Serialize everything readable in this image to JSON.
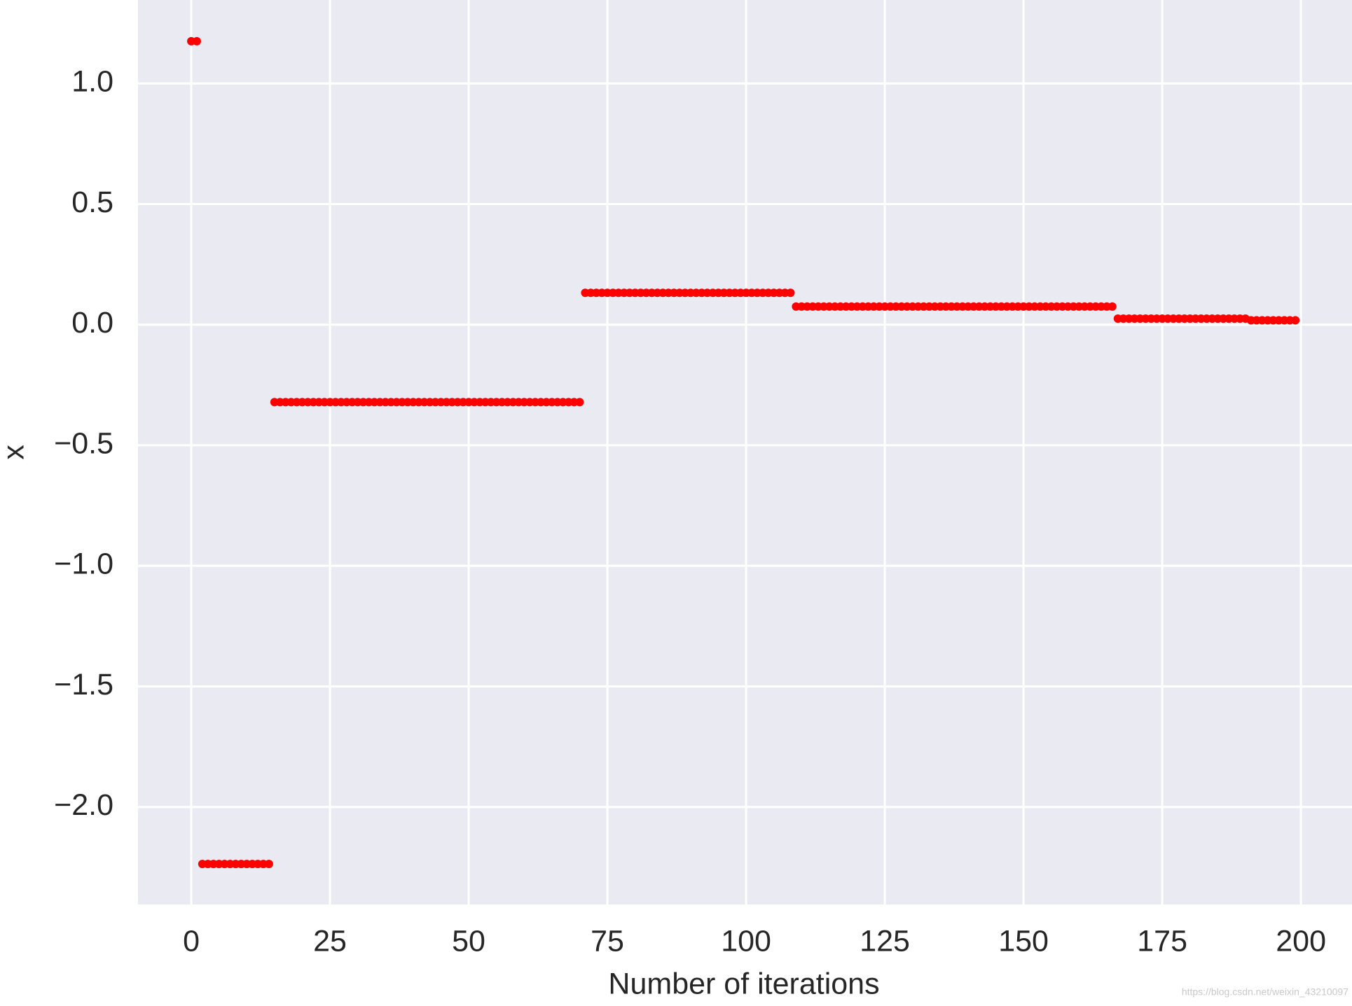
{
  "chart_data": {
    "type": "scatter",
    "x_label": "Number of iterations",
    "y_label": "x",
    "watermark": "https://blog.csdn.net/weixin_43210097",
    "color": "#ff0000",
    "grid": true,
    "xlim": [
      -9.6,
      209.2
    ],
    "ylim": [
      -2.404,
      1.346
    ],
    "xticks": [
      0,
      25,
      50,
      75,
      100,
      125,
      150,
      175,
      200
    ],
    "yticks": [
      {
        "value": -2.0,
        "label": "−2.0"
      },
      {
        "value": -1.5,
        "label": "−1.5"
      },
      {
        "value": -1.0,
        "label": "−1.0"
      },
      {
        "value": -0.5,
        "label": "−0.5"
      },
      {
        "value": 0.0,
        "label": "0.0"
      },
      0.5,
      {
        "value": 1.0,
        "label": "1.0"
      }
    ],
    "x": [
      0,
      1,
      2,
      3,
      4,
      5,
      6,
      7,
      8,
      9,
      10,
      11,
      12,
      13,
      14,
      15,
      16,
      17,
      18,
      19,
      20,
      21,
      22,
      23,
      24,
      25,
      26,
      27,
      28,
      29,
      30,
      31,
      32,
      33,
      34,
      35,
      36,
      37,
      38,
      39,
      40,
      41,
      42,
      43,
      44,
      45,
      46,
      47,
      48,
      49,
      50,
      51,
      52,
      53,
      54,
      55,
      56,
      57,
      58,
      59,
      60,
      61,
      62,
      63,
      64,
      65,
      66,
      67,
      68,
      69,
      70,
      71,
      72,
      73,
      74,
      75,
      76,
      77,
      78,
      79,
      80,
      81,
      82,
      83,
      84,
      85,
      86,
      87,
      88,
      89,
      90,
      91,
      92,
      93,
      94,
      95,
      96,
      97,
      98,
      99,
      100,
      101,
      102,
      103,
      104,
      105,
      106,
      107,
      108,
      109,
      110,
      111,
      112,
      113,
      114,
      115,
      116,
      117,
      118,
      119,
      120,
      121,
      122,
      123,
      124,
      125,
      126,
      127,
      128,
      129,
      130,
      131,
      132,
      133,
      134,
      135,
      136,
      137,
      138,
      139,
      140,
      141,
      142,
      143,
      144,
      145,
      146,
      147,
      148,
      149,
      150,
      151,
      152,
      153,
      154,
      155,
      156,
      157,
      158,
      159,
      160,
      161,
      162,
      163,
      164,
      165,
      166,
      167,
      168,
      169,
      170,
      171,
      172,
      173,
      174,
      175,
      176,
      177,
      178,
      179,
      180,
      181,
      182,
      183,
      184,
      185,
      186,
      187,
      188,
      189,
      190,
      191,
      192,
      193,
      194,
      195,
      196,
      197,
      198,
      199
    ],
    "values": [
      1.175,
      1.175,
      -2.236,
      -2.236,
      -2.236,
      -2.236,
      -2.236,
      -2.236,
      -2.236,
      -2.236,
      -2.236,
      -2.236,
      -2.236,
      -2.236,
      -2.236,
      -0.321,
      -0.321,
      -0.321,
      -0.321,
      -0.321,
      -0.321,
      -0.321,
      -0.321,
      -0.321,
      -0.321,
      -0.321,
      -0.321,
      -0.321,
      -0.321,
      -0.321,
      -0.321,
      -0.321,
      -0.321,
      -0.321,
      -0.321,
      -0.321,
      -0.321,
      -0.321,
      -0.321,
      -0.321,
      -0.321,
      -0.321,
      -0.321,
      -0.321,
      -0.321,
      -0.321,
      -0.321,
      -0.321,
      -0.321,
      -0.321,
      -0.321,
      -0.321,
      -0.321,
      -0.321,
      -0.321,
      -0.321,
      -0.321,
      -0.321,
      -0.321,
      -0.321,
      -0.321,
      -0.321,
      -0.321,
      -0.321,
      -0.321,
      -0.321,
      -0.321,
      -0.321,
      -0.321,
      -0.321,
      -0.321,
      0.132,
      0.132,
      0.132,
      0.132,
      0.132,
      0.132,
      0.132,
      0.132,
      0.132,
      0.132,
      0.132,
      0.132,
      0.132,
      0.132,
      0.132,
      0.132,
      0.132,
      0.132,
      0.132,
      0.132,
      0.132,
      0.132,
      0.132,
      0.132,
      0.132,
      0.132,
      0.132,
      0.132,
      0.132,
      0.132,
      0.132,
      0.132,
      0.132,
      0.132,
      0.132,
      0.132,
      0.132,
      0.132,
      0.075,
      0.075,
      0.075,
      0.075,
      0.075,
      0.075,
      0.075,
      0.075,
      0.075,
      0.075,
      0.075,
      0.075,
      0.075,
      0.075,
      0.075,
      0.075,
      0.075,
      0.075,
      0.075,
      0.075,
      0.075,
      0.075,
      0.075,
      0.075,
      0.075,
      0.075,
      0.075,
      0.075,
      0.075,
      0.075,
      0.075,
      0.075,
      0.075,
      0.075,
      0.075,
      0.075,
      0.075,
      0.075,
      0.075,
      0.075,
      0.075,
      0.075,
      0.075,
      0.075,
      0.075,
      0.075,
      0.075,
      0.075,
      0.075,
      0.075,
      0.075,
      0.075,
      0.075,
      0.075,
      0.075,
      0.075,
      0.075,
      0.075,
      0.025,
      0.025,
      0.025,
      0.025,
      0.025,
      0.025,
      0.025,
      0.025,
      0.025,
      0.025,
      0.025,
      0.025,
      0.025,
      0.025,
      0.025,
      0.025,
      0.025,
      0.025,
      0.025,
      0.025,
      0.025,
      0.025,
      0.025,
      0.025,
      0.018,
      0.018,
      0.018,
      0.018,
      0.018,
      0.018,
      0.018,
      0.018,
      0.018
    ]
  }
}
